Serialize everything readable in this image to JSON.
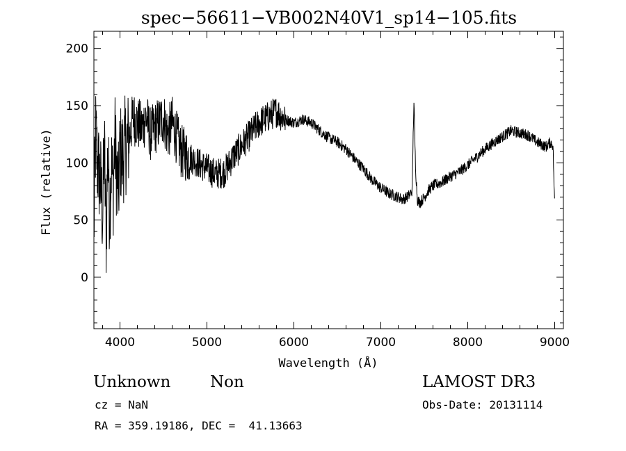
{
  "chart_data": {
    "type": "line",
    "title": "spec−56611−VB002N40V1_sp14−105.fits",
    "xlabel": "Wavelength (Å)",
    "ylabel": "Flux (relative)",
    "xlim": [
      3700,
      9100
    ],
    "ylim": [
      -45,
      215
    ],
    "x_ticks": [
      4000,
      5000,
      6000,
      7000,
      8000,
      9000
    ],
    "y_ticks": [
      0,
      50,
      100,
      150,
      200
    ],
    "x_tick_labels": [
      "4000",
      "5000",
      "6000",
      "7000",
      "8000",
      "9000"
    ],
    "y_tick_labels": [
      "0",
      "50",
      "100",
      "150",
      "200"
    ],
    "grid": false,
    "series": [
      {
        "name": "flux",
        "x": [
          3700,
          3720,
          3740,
          3760,
          3780,
          3800,
          3820,
          3840,
          3860,
          3880,
          3900,
          3920,
          3940,
          3960,
          3980,
          4000,
          4030,
          4060,
          4100,
          4150,
          4200,
          4250,
          4300,
          4350,
          4400,
          4450,
          4500,
          4550,
          4600,
          4700,
          4800,
          4900,
          5000,
          5100,
          5200,
          5300,
          5400,
          5500,
          5600,
          5700,
          5800,
          5900,
          6000,
          6100,
          6200,
          6300,
          6400,
          6500,
          6600,
          6700,
          6800,
          6900,
          7000,
          7100,
          7200,
          7250,
          7300,
          7330,
          7360,
          7380,
          7400,
          7420,
          7450,
          7500,
          7550,
          7600,
          7700,
          7800,
          7900,
          8000,
          8100,
          8200,
          8300,
          8400,
          8500,
          8600,
          8700,
          8800,
          8850,
          8900,
          8950,
          8980,
          9000
        ],
        "y": [
          40,
          125,
          100,
          90,
          80,
          55,
          115,
          35,
          110,
          60,
          100,
          75,
          120,
          95,
          70,
          110,
          105,
          115,
          120,
          140,
          135,
          130,
          140,
          125,
          130,
          135,
          140,
          125,
          135,
          110,
          105,
          100,
          95,
          90,
          92,
          105,
          115,
          125,
          135,
          140,
          145,
          138,
          135,
          138,
          135,
          128,
          122,
          118,
          112,
          103,
          95,
          85,
          78,
          73,
          70,
          68,
          70,
          72,
          76,
          155,
          95,
          68,
          65,
          70,
          76,
          80,
          83,
          88,
          92,
          98,
          105,
          112,
          118,
          123,
          128,
          126,
          124,
          118,
          116,
          114,
          118,
          115,
          60
        ]
      }
    ]
  },
  "info": {
    "object_class": "Unknown",
    "object_subclass": "Non",
    "survey": "LAMOST DR3",
    "redshift": "cz = NaN",
    "obs_date": "Obs-Date: 20131114",
    "coords": "RA = 359.19186, DEC =  41.13663"
  }
}
